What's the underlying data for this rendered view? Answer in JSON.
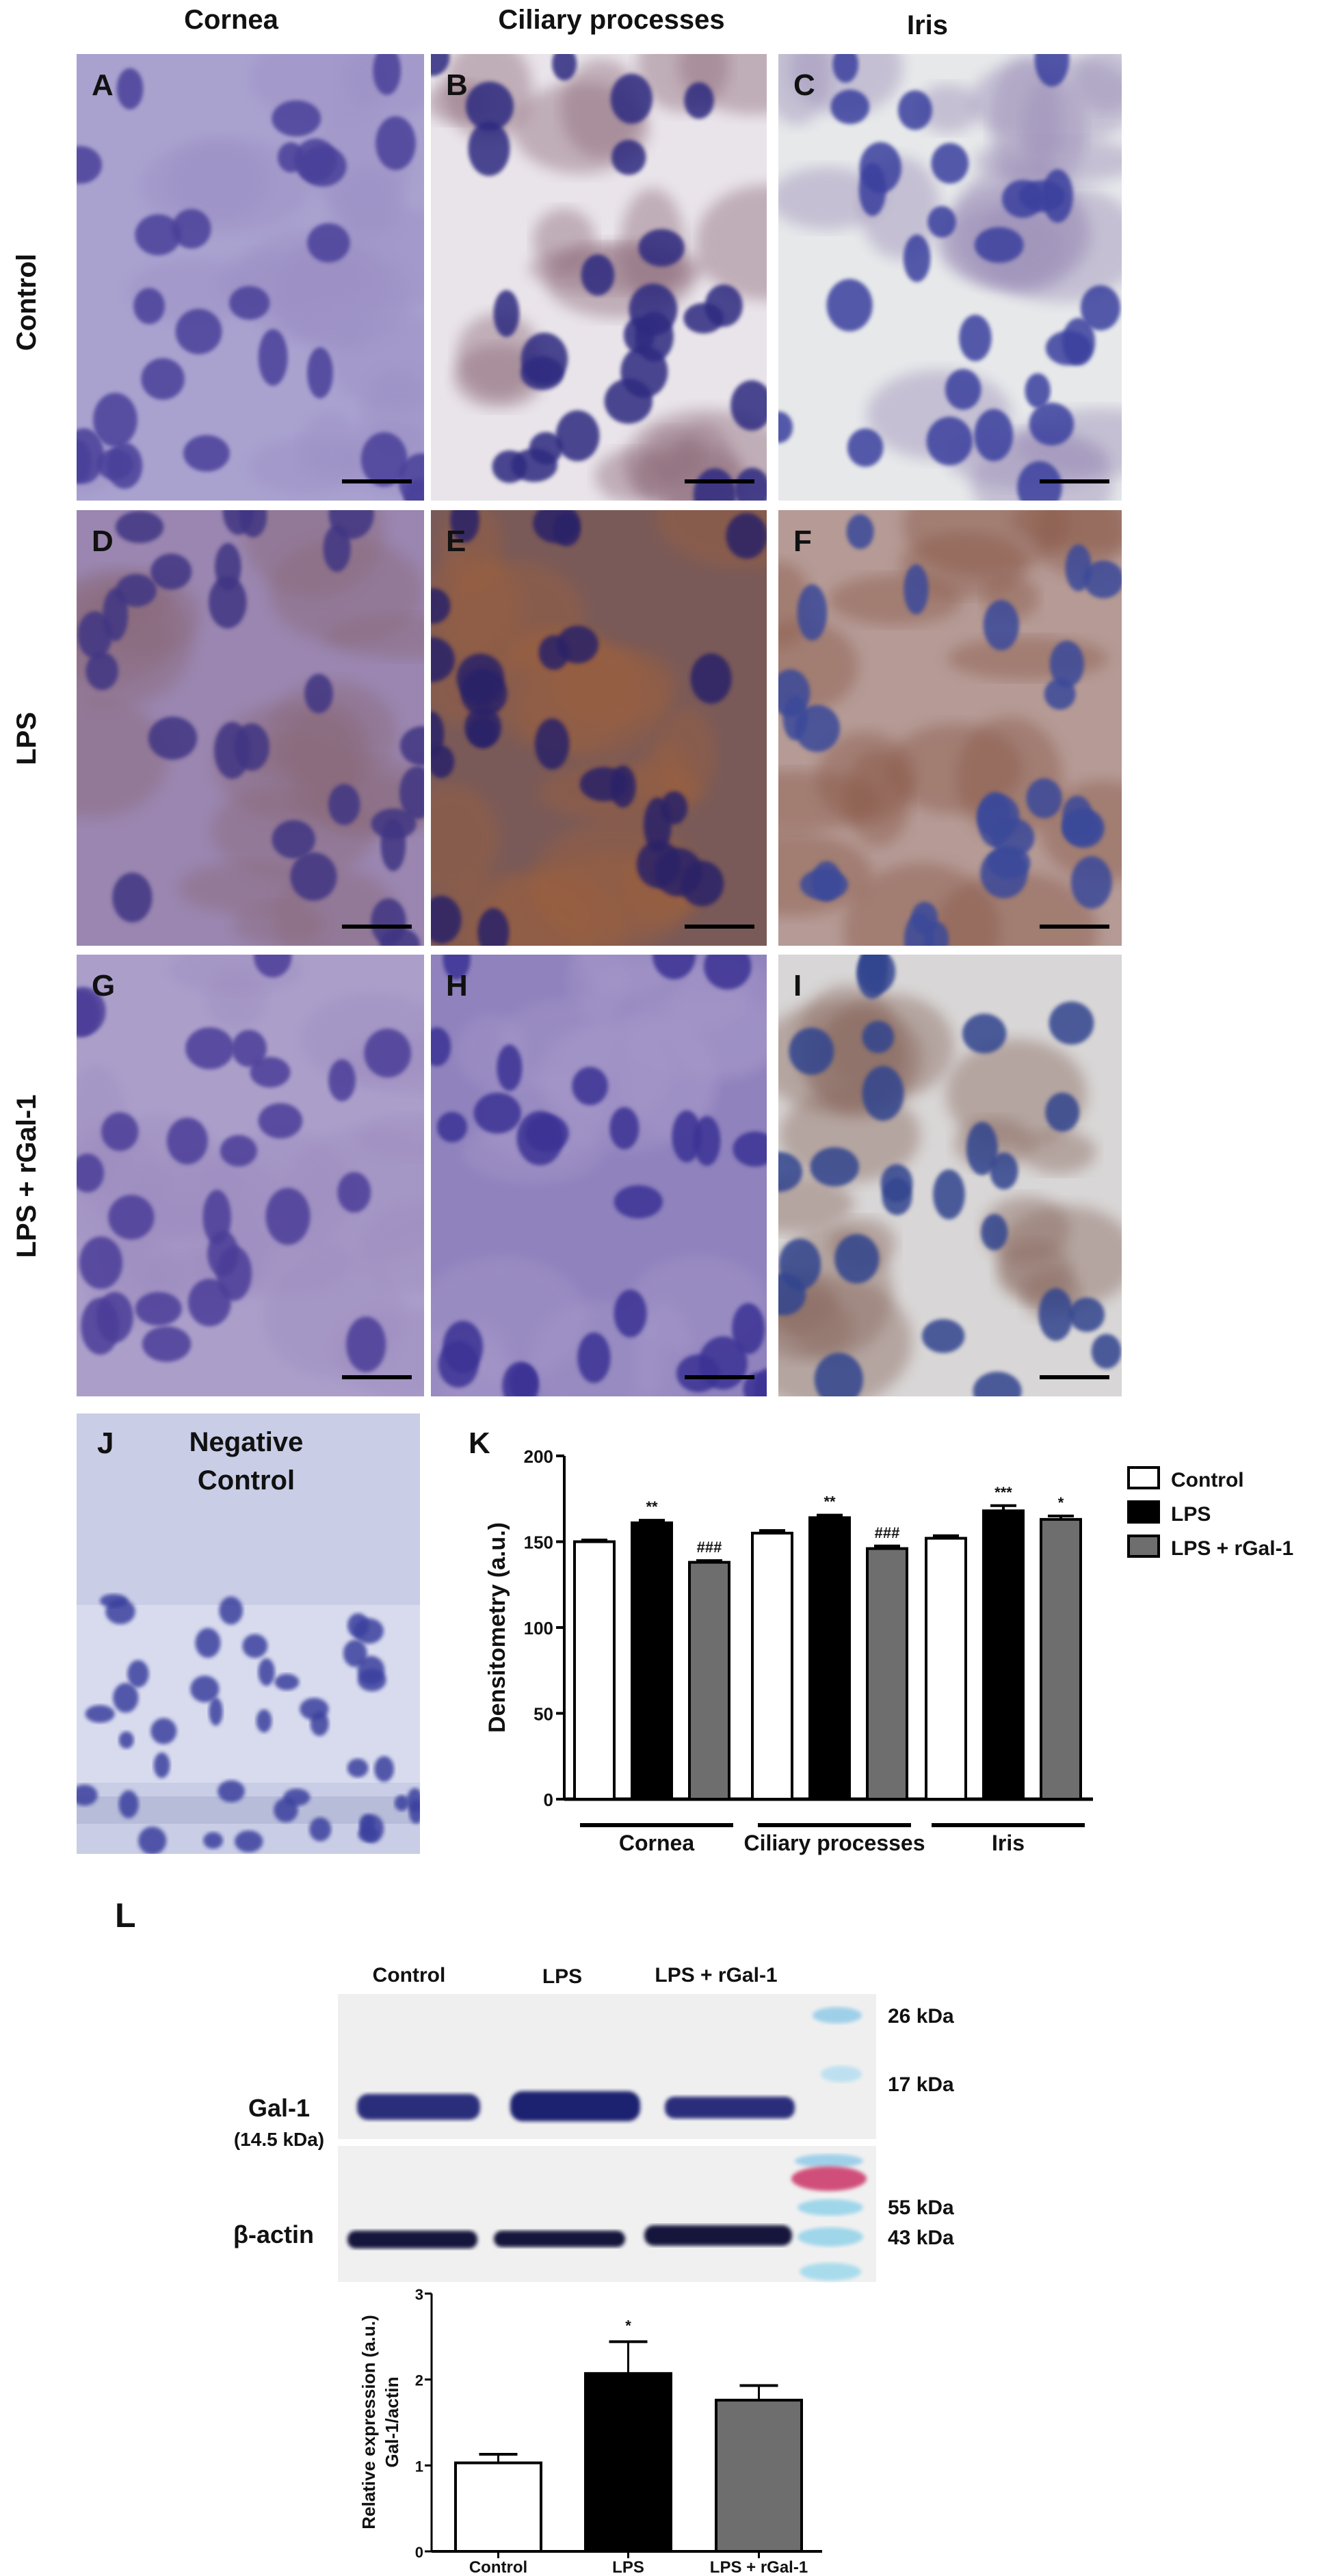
{
  "column_headers": [
    "Cornea",
    "Ciliary processes",
    "Iris"
  ],
  "row_labels": [
    "Control",
    "LPS",
    "LPS + rGal-1"
  ],
  "panels": [
    {
      "letter": "A",
      "tone": "#a9a2cf",
      "stain": "#9c8fc4",
      "nuclei": "#4a3f9a"
    },
    {
      "letter": "B",
      "tone": "#e9e4ea",
      "stain": "#8e6c7a",
      "nuclei": "#2f2a80"
    },
    {
      "letter": "C",
      "tone": "#e6e8ea",
      "stain": "#9c8fb8",
      "nuclei": "#3a3f9e"
    },
    {
      "letter": "D",
      "tone": "#9a86b0",
      "stain": "#8a6a7a",
      "nuclei": "#3f3583"
    },
    {
      "letter": "E",
      "tone": "#7a5a58",
      "stain": "#9a6040",
      "nuclei": "#2a2468"
    },
    {
      "letter": "F",
      "tone": "#b59a95",
      "stain": "#8a5a48",
      "nuclei": "#3a4a9a"
    },
    {
      "letter": "G",
      "tone": "#ab9fca",
      "stain": "#9d8cc0",
      "nuclei": "#4b3c98"
    },
    {
      "letter": "H",
      "tone": "#8f82bd",
      "stain": "#a597c8",
      "nuclei": "#3a3394"
    },
    {
      "letter": "I",
      "tone": "#d8d6d6",
      "stain": "#8a6a60",
      "nuclei": "#33448f"
    }
  ],
  "panel_j": {
    "letter": "J",
    "title_line1": "Negative",
    "title_line2": "Control",
    "tone": "#c9cde6",
    "nuclei": "#3b3f9e"
  },
  "chart_k": {
    "letter": "K",
    "type": "bar",
    "ylabel": "Densitometry (a.u.)",
    "ylim": [
      0,
      200
    ],
    "yticks": [
      0,
      50,
      100,
      150,
      200
    ],
    "groups": [
      "Cornea",
      "Ciliary processes",
      "Iris"
    ],
    "legend_placement": "right",
    "series": [
      {
        "name": "Control",
        "color": "#ffffff",
        "values": [
          150,
          155,
          152
        ],
        "errors": [
          1,
          1.5,
          1.5
        ],
        "annotations": [
          "",
          "",
          ""
        ]
      },
      {
        "name": "LPS",
        "color": "#000000",
        "values": [
          161,
          164,
          168
        ],
        "errors": [
          1.5,
          1.5,
          3
        ],
        "annotations": [
          "**",
          "**",
          "***"
        ]
      },
      {
        "name": "LPS + rGal-1",
        "color": "#6e6e6e",
        "values": [
          138,
          146,
          163
        ],
        "errors": [
          1,
          1.5,
          2
        ],
        "annotations": [
          "###",
          "###",
          "*"
        ]
      }
    ]
  },
  "panel_l": {
    "letter": "L",
    "lane_labels": [
      "Control",
      "LPS",
      "LPS + rGal-1"
    ],
    "band_labels": {
      "gal1": "Gal-1",
      "gal1_mw": "(14.5 kDa)",
      "actin": "β-actin"
    },
    "markers": [
      "26 kDa",
      "17 kDa",
      "55 kDa",
      "43 kDa"
    ]
  },
  "chart_data": {
    "type": "bar",
    "ylabel": "Relative expression (a.u.)",
    "ylabel2": "Gal-1/actin",
    "ylim": [
      0,
      3
    ],
    "yticks": [
      0,
      1,
      2,
      3
    ],
    "categories": [
      "Control",
      "LPS",
      "LPS + rGal-1"
    ],
    "values": [
      1.03,
      2.07,
      1.76
    ],
    "errors": [
      0.1,
      0.37,
      0.17
    ],
    "colors": [
      "#ffffff",
      "#000000",
      "#6e6e6e"
    ],
    "annotations": [
      "",
      "*",
      ""
    ]
  }
}
